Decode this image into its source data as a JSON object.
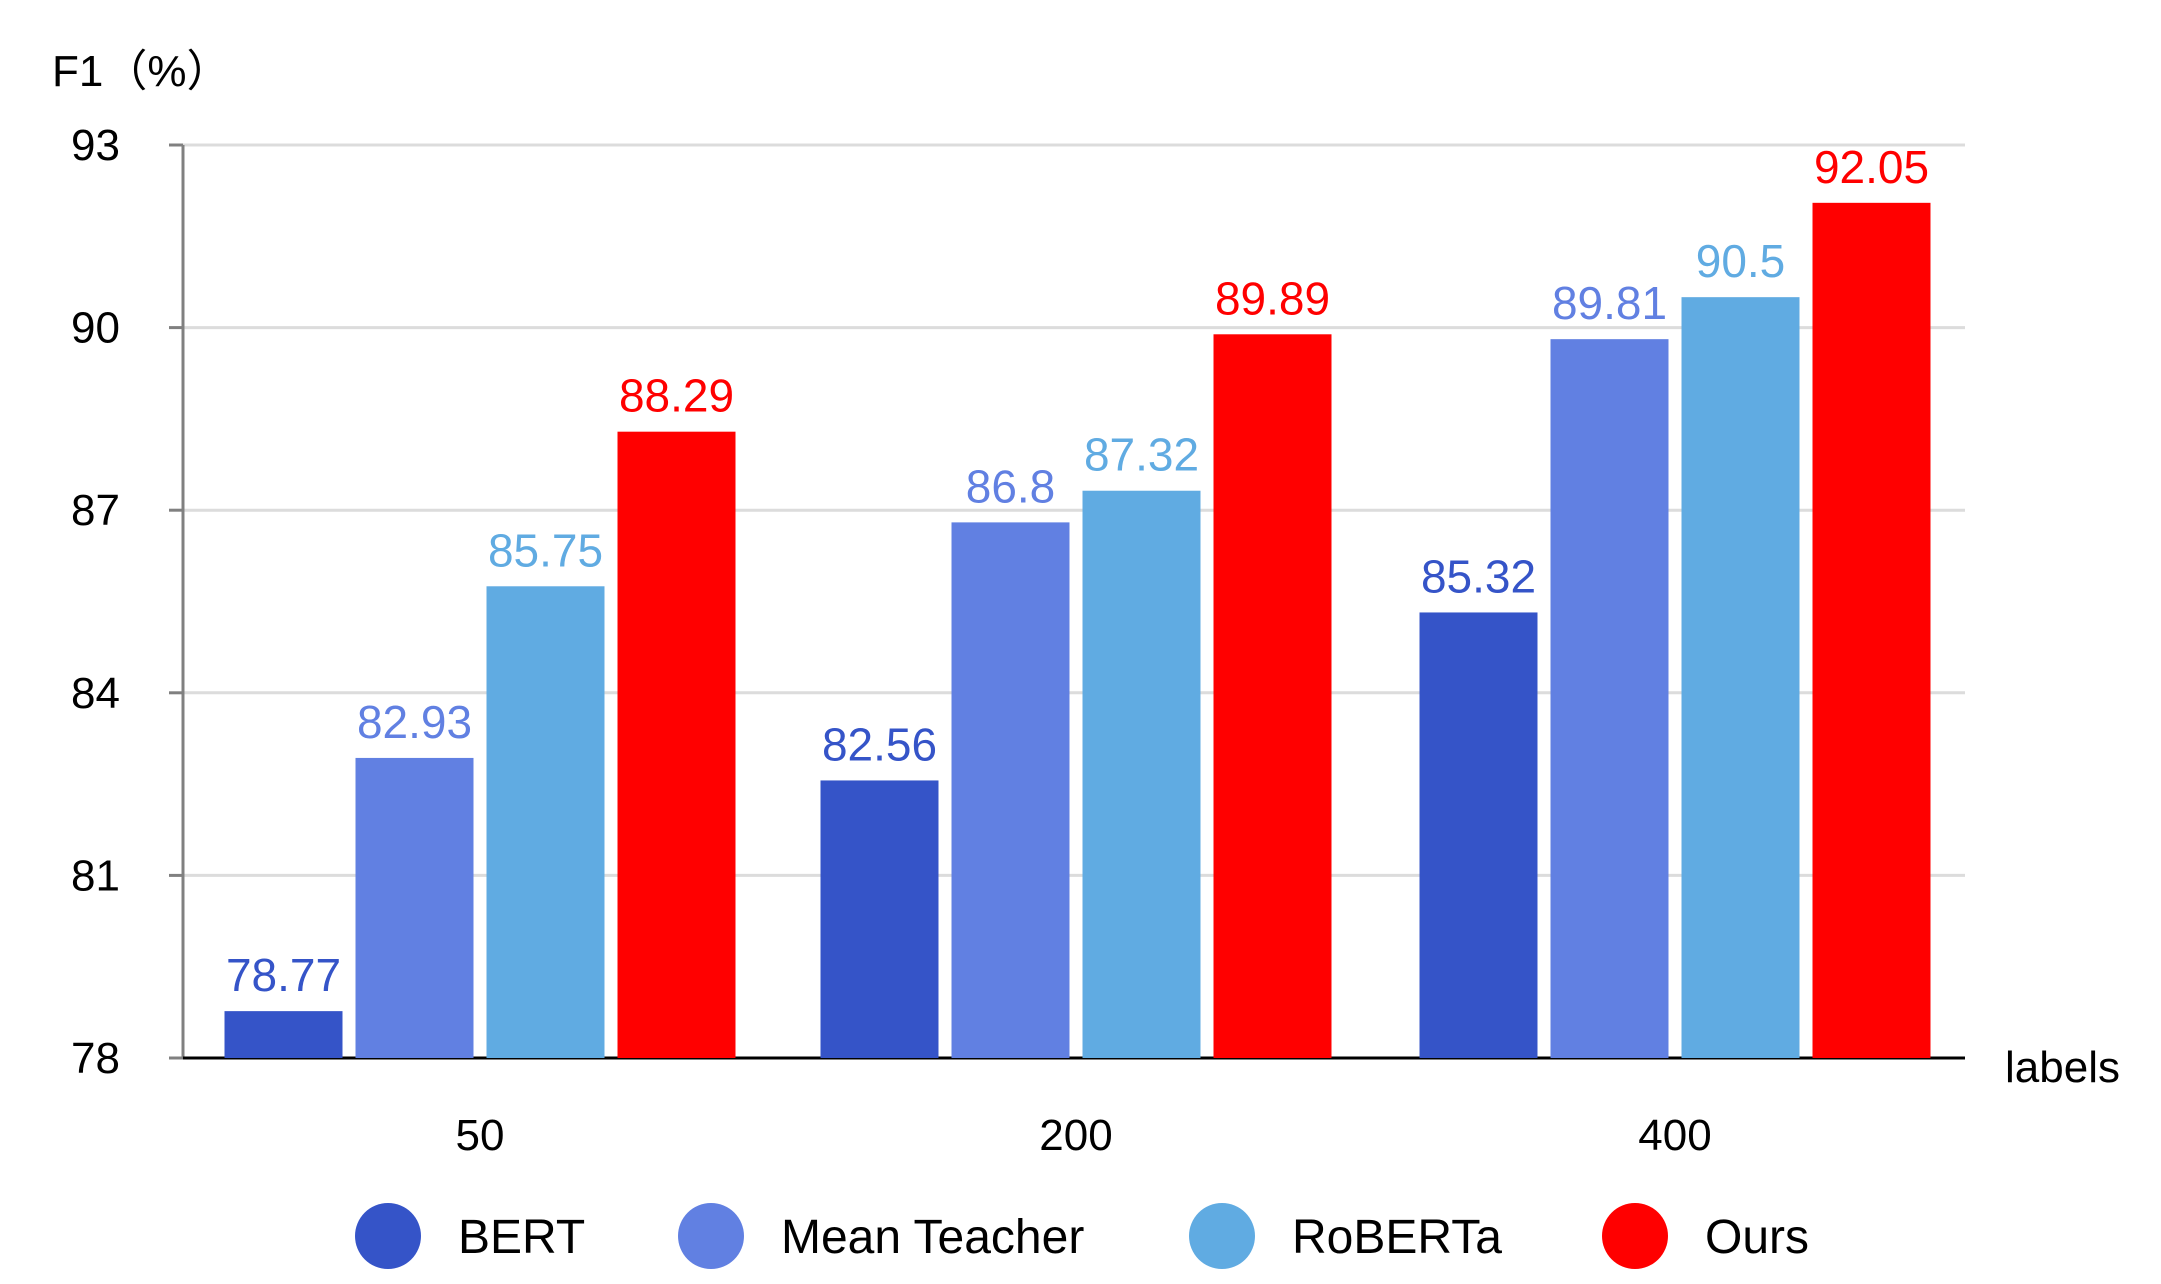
{
  "chart_data": {
    "type": "bar",
    "title": "",
    "ylabel": "F1（%）",
    "xlabel": "labels",
    "categories": [
      "50",
      "200",
      "400"
    ],
    "ylim": [
      78,
      93
    ],
    "yticks": [
      78,
      81,
      84,
      87,
      90,
      93
    ],
    "ytick_labels": [
      "78",
      "81",
      "84",
      "87",
      "90",
      "93"
    ],
    "grid": true,
    "legend_position": "bottom",
    "series": [
      {
        "name": "BERT",
        "color": "#3554c8",
        "label_color": "#3554c8",
        "values": [
          78.77,
          82.56,
          85.32
        ],
        "labels": [
          "78.77",
          "82.56",
          "85.32"
        ]
      },
      {
        "name": "Mean Teacher",
        "color": "#6180e2",
        "label_color": "#6180e2",
        "values": [
          82.93,
          86.8,
          89.81
        ],
        "labels": [
          "82.93",
          "86.8",
          "89.81"
        ]
      },
      {
        "name": "RoBERTa",
        "color": "#60abe2",
        "label_color": "#60abe2",
        "values": [
          85.75,
          87.32,
          90.5
        ],
        "labels": [
          "85.75",
          "87.32",
          "90.5"
        ]
      },
      {
        "name": "Ours",
        "color": "#ff0000",
        "label_color": "#ff0000",
        "values": [
          88.29,
          89.89,
          92.05
        ],
        "labels": [
          "88.29",
          "89.89",
          "92.05"
        ]
      }
    ]
  }
}
